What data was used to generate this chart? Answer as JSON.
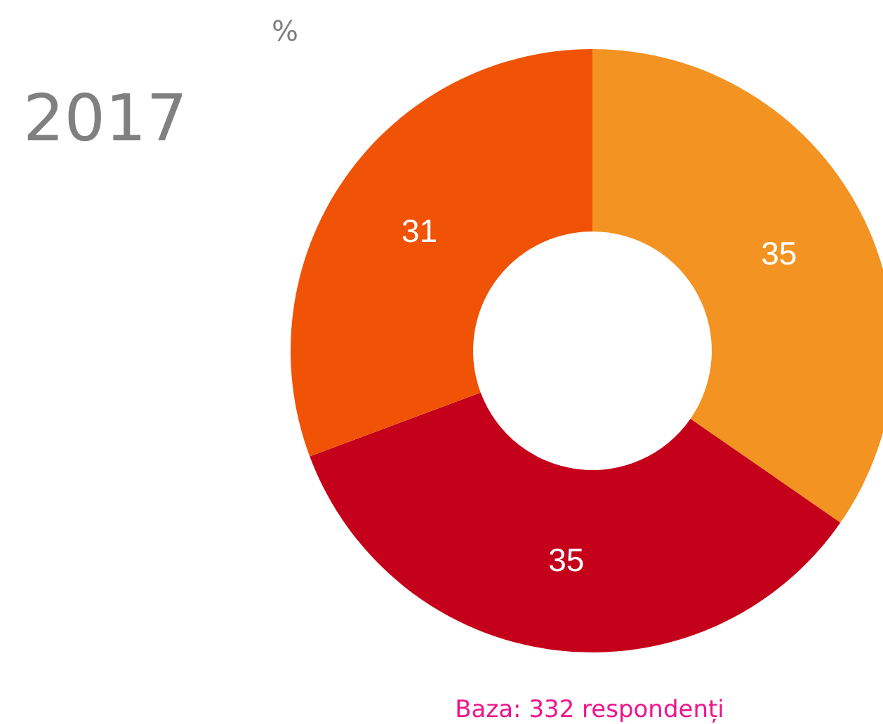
{
  "chart_data": {
    "type": "donut",
    "title": "2017",
    "subtitle": "%",
    "categories": [
      null,
      null,
      null
    ],
    "values": [
      35,
      35,
      31
    ],
    "colors": [
      "#f39321",
      "#c5001a",
      "#f05206"
    ],
    "data_labels": true,
    "annotations": [
      "Baza: 332 respondenți"
    ]
  }
}
